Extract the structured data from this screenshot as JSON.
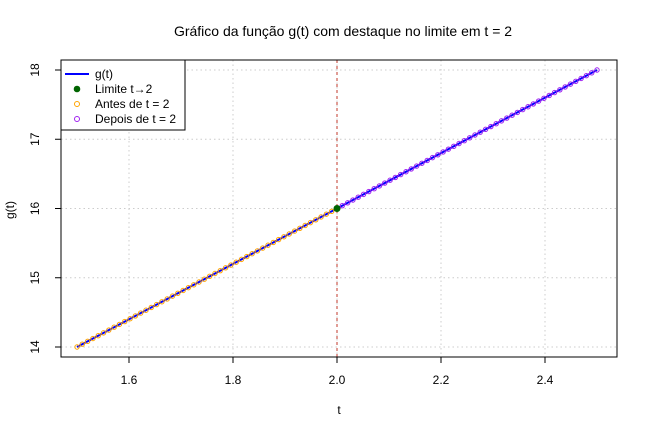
{
  "chart_data": {
    "type": "line",
    "title": "Gráfico da função g(t) com destaque no limite em t = 2",
    "xlabel": "t",
    "ylabel": "g(t)",
    "xlim": [
      1.5,
      2.5
    ],
    "ylim": [
      14,
      18
    ],
    "x_ticks": [
      "1.6",
      "1.8",
      "2.0",
      "2.2",
      "2.4"
    ],
    "y_ticks": [
      "14",
      "15",
      "16",
      "17",
      "18"
    ],
    "grid": "dotted",
    "legend_position": "top-left",
    "function": "g(t) = 4t + 8",
    "vertical_line": {
      "x": 2.0,
      "style": "dashed",
      "color": "#c0392b"
    },
    "series": [
      {
        "name": "g(t)",
        "kind": "line",
        "color": "#0000ff",
        "x": [
          1.5,
          2.5
        ],
        "y": [
          14,
          18
        ]
      },
      {
        "name": "Limite t→2",
        "kind": "point",
        "color": "#006400",
        "x": [
          2.0
        ],
        "y": [
          16
        ]
      },
      {
        "name": "Antes de t = 2",
        "kind": "points",
        "color": "#ffa500",
        "x_range": [
          1.5,
          2.0
        ],
        "count": 50,
        "y_formula": "4t + 8"
      },
      {
        "name": "Depois de t = 2",
        "kind": "points",
        "color": "#a020f0",
        "x_range": [
          2.0,
          2.5
        ],
        "count": 50,
        "y_formula": "4t + 8"
      }
    ]
  }
}
